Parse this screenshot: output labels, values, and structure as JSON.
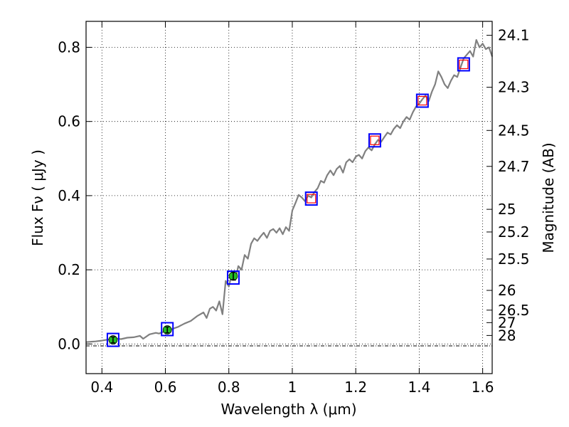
{
  "chart_data": {
    "type": "line",
    "title": "",
    "xlabel": "Wavelength  λ (μm)",
    "ylabel_left": "Flux  Fν  ( μJy )",
    "ylabel_right": "Magnitude (AB)",
    "xlim": [
      0.35,
      1.63
    ],
    "ylim": [
      -0.08,
      0.87
    ],
    "grid": true,
    "x_ticks": [
      {
        "value": 0.4,
        "label": "0.4"
      },
      {
        "value": 0.6,
        "label": "0.6"
      },
      {
        "value": 0.8,
        "label": "0.8"
      },
      {
        "value": 1.0,
        "label": "1"
      },
      {
        "value": 1.2,
        "label": "1.2"
      },
      {
        "value": 1.4,
        "label": "1.4"
      },
      {
        "value": 1.6,
        "label": "1.6"
      }
    ],
    "y_ticks": [
      {
        "value": 0.0,
        "label": "0.0"
      },
      {
        "value": 0.2,
        "label": "0.2"
      },
      {
        "value": 0.4,
        "label": "0.4"
      },
      {
        "value": 0.6,
        "label": "0.6"
      },
      {
        "value": 0.8,
        "label": "0.8"
      }
    ],
    "mag_ticks": [
      {
        "flux": 0.8324,
        "label": "24.1"
      },
      {
        "flux": 0.6923,
        "label": "24.3"
      },
      {
        "flux": 0.5758,
        "label": "24.5"
      },
      {
        "flux": 0.4789,
        "label": "24.7"
      },
      {
        "flux": 0.3631,
        "label": "25"
      },
      {
        "flux": 0.302,
        "label": "25.2"
      },
      {
        "flux": 0.2291,
        "label": "25.5"
      },
      {
        "flux": 0.1445,
        "label": "26"
      },
      {
        "flux": 0.0912,
        "label": "26.5"
      },
      {
        "flux": 0.0575,
        "label": "27"
      },
      {
        "flux": 0.0229,
        "label": "28"
      }
    ],
    "spectrum": {
      "name": "model spectrum",
      "color": "#808080",
      "x": [
        0.35,
        0.38,
        0.4,
        0.42,
        0.44,
        0.46,
        0.48,
        0.5,
        0.52,
        0.53,
        0.55,
        0.57,
        0.58,
        0.6,
        0.62,
        0.64,
        0.66,
        0.68,
        0.7,
        0.72,
        0.73,
        0.74,
        0.75,
        0.76,
        0.77,
        0.78,
        0.79,
        0.8,
        0.81,
        0.82,
        0.83,
        0.84,
        0.85,
        0.86,
        0.87,
        0.88,
        0.89,
        0.9,
        0.91,
        0.92,
        0.93,
        0.94,
        0.95,
        0.96,
        0.97,
        0.98,
        0.99,
        1.0,
        1.01,
        1.02,
        1.03,
        1.04,
        1.05,
        1.06,
        1.07,
        1.08,
        1.09,
        1.1,
        1.11,
        1.12,
        1.13,
        1.14,
        1.15,
        1.16,
        1.17,
        1.18,
        1.19,
        1.2,
        1.21,
        1.22,
        1.23,
        1.24,
        1.25,
        1.26,
        1.27,
        1.28,
        1.29,
        1.3,
        1.31,
        1.32,
        1.33,
        1.34,
        1.35,
        1.36,
        1.37,
        1.38,
        1.39,
        1.4,
        1.41,
        1.42,
        1.43,
        1.44,
        1.45,
        1.46,
        1.47,
        1.48,
        1.49,
        1.5,
        1.51,
        1.52,
        1.53,
        1.54,
        1.55,
        1.56,
        1.57,
        1.58,
        1.59,
        1.6,
        1.61,
        1.62,
        1.63
      ],
      "y": [
        0.005,
        0.007,
        0.009,
        0.012,
        0.015,
        0.013,
        0.017,
        0.018,
        0.022,
        0.014,
        0.026,
        0.03,
        0.028,
        0.035,
        0.04,
        0.046,
        0.055,
        0.062,
        0.075,
        0.085,
        0.07,
        0.095,
        0.1,
        0.09,
        0.115,
        0.08,
        0.17,
        0.155,
        0.19,
        0.172,
        0.21,
        0.2,
        0.24,
        0.23,
        0.27,
        0.285,
        0.278,
        0.29,
        0.3,
        0.286,
        0.305,
        0.31,
        0.3,
        0.312,
        0.296,
        0.315,
        0.305,
        0.36,
        0.38,
        0.402,
        0.395,
        0.385,
        0.4,
        0.395,
        0.41,
        0.42,
        0.44,
        0.435,
        0.455,
        0.468,
        0.455,
        0.472,
        0.48,
        0.462,
        0.49,
        0.498,
        0.49,
        0.505,
        0.51,
        0.5,
        0.52,
        0.53,
        0.522,
        0.538,
        0.55,
        0.545,
        0.558,
        0.57,
        0.565,
        0.58,
        0.59,
        0.582,
        0.6,
        0.612,
        0.605,
        0.625,
        0.64,
        0.648,
        0.66,
        0.67,
        0.655,
        0.68,
        0.7,
        0.735,
        0.72,
        0.7,
        0.69,
        0.71,
        0.725,
        0.72,
        0.745,
        0.77,
        0.78,
        0.79,
        0.775,
        0.82,
        0.8,
        0.81,
        0.795,
        0.8,
        0.775
      ]
    },
    "photometry": {
      "name": "observed photometry",
      "color": "#22bb22",
      "x": [
        0.435,
        0.606,
        0.814
      ],
      "y": [
        0.011,
        0.038,
        0.183
      ],
      "yerr": [
        0.008,
        0.008,
        0.01
      ]
    },
    "model_photometry_blue": {
      "name": "model photometry (blue boxes)",
      "color": "#0000ff",
      "x": [
        0.435,
        0.606,
        0.814,
        1.06,
        1.26,
        1.41,
        1.54
      ],
      "y": [
        0.011,
        0.04,
        0.179,
        0.392,
        0.549,
        0.656,
        0.754
      ]
    },
    "model_photometry_red": {
      "name": "model photometry (red boxes)",
      "color": "#ff0000",
      "x": [
        1.06,
        1.26,
        1.41,
        1.54
      ],
      "y": [
        0.392,
        0.549,
        0.656,
        0.754
      ]
    }
  }
}
